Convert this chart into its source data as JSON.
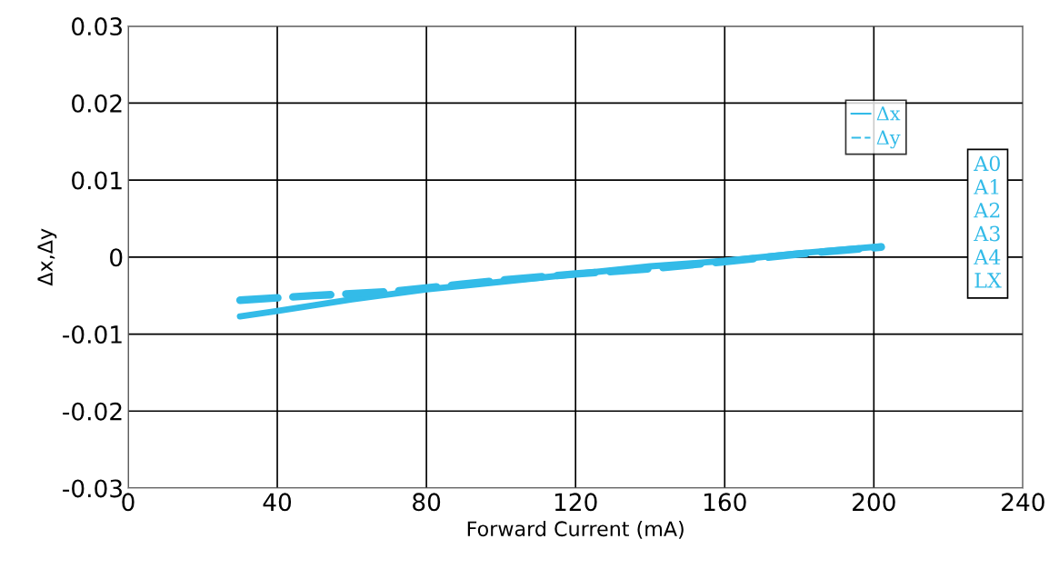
{
  "chart_data": {
    "type": "line",
    "xlabel": "Forward Current (mA)",
    "ylabel": "Δx,Δy",
    "x": [
      30,
      40,
      60,
      80,
      100,
      120,
      140,
      160,
      180,
      202
    ],
    "series": [
      {
        "name": "Δx",
        "color": "#33bbe8",
        "line_style": "solid",
        "values": [
          -0.0077,
          -0.007,
          -0.0055,
          -0.0042,
          -0.0032,
          -0.0022,
          -0.0012,
          -0.0005,
          0.0005,
          0.0014
        ]
      },
      {
        "name": "Δy",
        "color": "#33bbe8",
        "line_style": "dashed",
        "x": [
          30,
          50,
          70,
          100,
          120,
          140,
          160,
          180,
          202
        ],
        "values": [
          -0.0056,
          -0.005,
          -0.0045,
          -0.003,
          -0.0022,
          -0.0015,
          -0.0006,
          0.0004,
          0.0013
        ]
      }
    ],
    "annotations": [
      "A0\nA1\nA2\nA3\nA4\nLX"
    ],
    "xlim": [
      0,
      240
    ],
    "xticks": [
      0,
      40,
      80,
      120,
      160,
      200,
      240
    ],
    "ylim": [
      -0.03,
      0.03
    ],
    "yticks": [
      {
        "value": -0.03,
        "label": "-0.03"
      },
      {
        "value": -0.02,
        "label": "-0.02"
      },
      {
        "value": -0.01,
        "label": "-0.01"
      },
      0,
      0.01,
      0.02,
      0.03
    ],
    "grid": true,
    "legend": "top right",
    "marker": "none"
  }
}
